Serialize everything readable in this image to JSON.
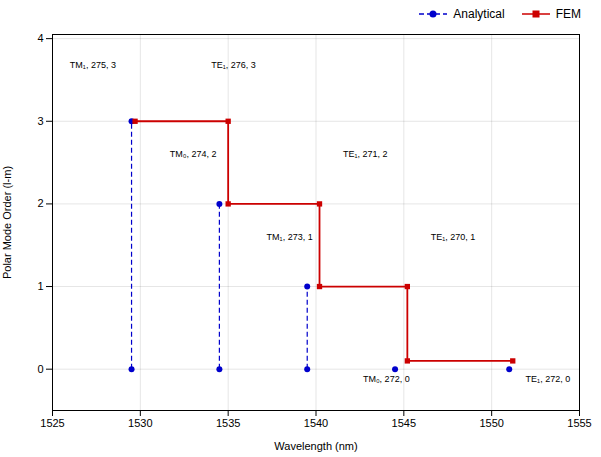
{
  "chart_data": {
    "type": "line",
    "xlabel": "Wavelength (nm)",
    "ylabel": "Polar Mode Order (l-m)",
    "xlim": [
      1525,
      1555
    ],
    "xticks": [
      1525,
      1530,
      1535,
      1540,
      1545,
      1550,
      1555
    ],
    "ylim": [
      -0.5,
      4.05
    ],
    "yticks": [
      0,
      1,
      2,
      3,
      4
    ],
    "grid": true,
    "legend": "upper right",
    "series": [
      {
        "name": "Analytical",
        "type": "stem",
        "color": "#0000cc",
        "line_style": "dashed",
        "marker": "circle",
        "x": [
          1529.5,
          1534.5,
          1539.5,
          1544.5,
          1551.0
        ],
        "values": [
          3,
          2,
          1,
          0,
          0
        ]
      },
      {
        "name": "FEM",
        "type": "line",
        "color": "#cc0000",
        "line_style": "solid",
        "marker": "square",
        "x": [
          1529.7,
          1535.0,
          1535.0,
          1540.2,
          1540.2,
          1545.2,
          1545.2,
          1551.2
        ],
        "values": [
          3.0,
          3.0,
          2.0,
          2.0,
          1.0,
          1.0,
          0.1,
          0.1
        ]
      }
    ],
    "annotations": [
      {
        "text": "TM₁, 275, 3",
        "x": 1527.3,
        "y": 3.68
      },
      {
        "text": "TM₀, 274, 2",
        "x": 1533.0,
        "y": 2.6
      },
      {
        "text": "TE₁, 276, 3",
        "x": 1535.3,
        "y": 3.68
      },
      {
        "text": "TM₁, 273, 1",
        "x": 1538.5,
        "y": 1.6
      },
      {
        "text": "TE₁, 271, 2",
        "x": 1542.8,
        "y": 2.6
      },
      {
        "text": "TM₀, 272, 0",
        "x": 1544.0,
        "y": -0.12
      },
      {
        "text": "TE₁, 270, 1",
        "x": 1547.8,
        "y": 1.6
      },
      {
        "text": "TE₁, 272, 0",
        "x": 1553.2,
        "y": -0.12
      }
    ]
  }
}
